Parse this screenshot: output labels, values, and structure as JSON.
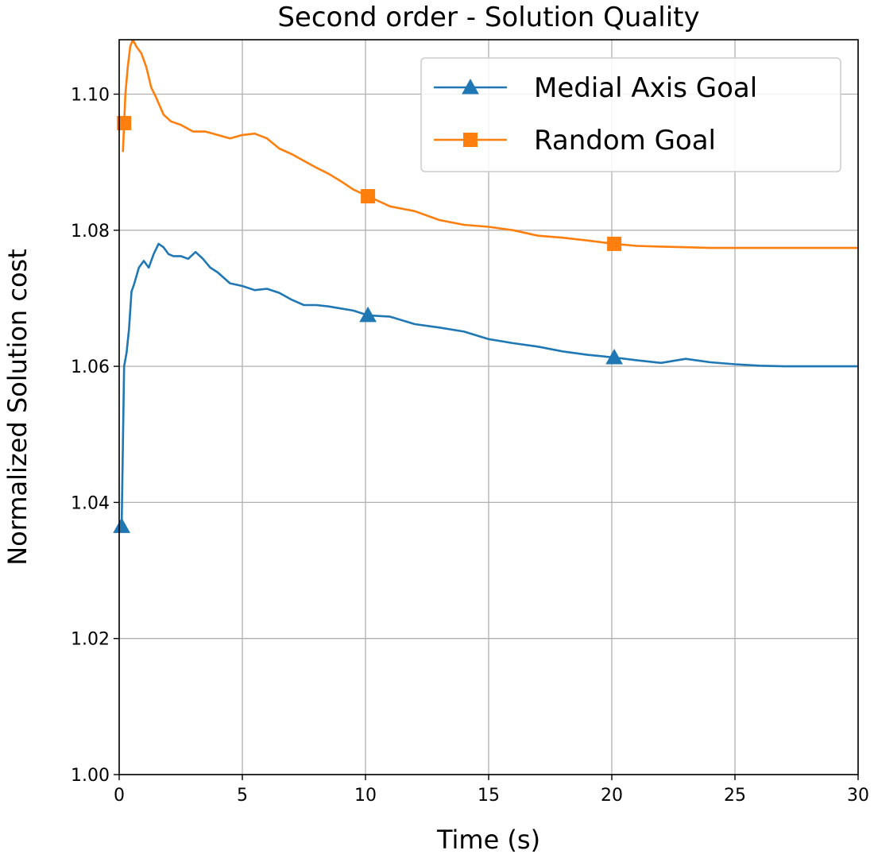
{
  "chart_data": {
    "type": "line",
    "title": "Second order - Solution Quality",
    "xlabel": "Time (s)",
    "ylabel": "Normalized Solution cost",
    "xlim": [
      0,
      30
    ],
    "ylim": [
      1.0,
      1.108
    ],
    "xticks": [
      0,
      5,
      10,
      15,
      20,
      25,
      30
    ],
    "xtick_labels": [
      "0",
      "5",
      "10",
      "15",
      "20",
      "25",
      "30"
    ],
    "yticks": [
      1.0,
      1.02,
      1.04,
      1.06,
      1.08,
      1.1
    ],
    "ytick_labels": [
      "1.00",
      "1.02",
      "1.04",
      "1.06",
      "1.08",
      "1.10"
    ],
    "grid": true,
    "legend_position": "top-right",
    "series": [
      {
        "name": "Medial Axis Goal",
        "color": "#1f77b4",
        "marker": "triangle",
        "marker_x": [
          0.1,
          10.1,
          20.1
        ],
        "x": [
          0.1,
          0.2,
          0.3,
          0.4,
          0.5,
          0.6,
          0.8,
          1.0,
          1.2,
          1.4,
          1.6,
          1.8,
          2.0,
          2.2,
          2.5,
          2.8,
          3.1,
          3.4,
          3.7,
          4.0,
          4.5,
          5.0,
          5.5,
          6.0,
          6.5,
          7.0,
          7.5,
          8.0,
          8.5,
          9.0,
          9.5,
          10.1,
          11,
          12,
          13,
          14,
          15,
          16,
          17,
          18,
          19,
          20.1,
          21,
          22,
          23,
          24,
          25,
          26,
          27,
          28,
          29,
          30
        ],
        "y": [
          1.0365,
          1.06,
          1.062,
          1.0655,
          1.071,
          1.072,
          1.0745,
          1.0755,
          1.0745,
          1.0765,
          1.078,
          1.0775,
          1.0765,
          1.0762,
          1.0762,
          1.0758,
          1.0768,
          1.0758,
          1.0745,
          1.0738,
          1.0722,
          1.0718,
          1.0712,
          1.0714,
          1.0708,
          1.0698,
          1.069,
          1.069,
          1.0688,
          1.0685,
          1.0682,
          1.0675,
          1.0673,
          1.0662,
          1.0657,
          1.0651,
          1.064,
          1.0634,
          1.0629,
          1.0622,
          1.0617,
          1.0613,
          1.0609,
          1.0605,
          1.0611,
          1.0606,
          1.0603,
          1.0601,
          1.06,
          1.06,
          1.06,
          1.06
        ]
      },
      {
        "name": "Random Goal",
        "color": "#ff7f0e",
        "marker": "square",
        "marker_x": [
          0.2,
          10.1,
          20.1
        ],
        "x": [
          0.15,
          0.25,
          0.35,
          0.45,
          0.55,
          0.7,
          0.9,
          1.1,
          1.3,
          1.5,
          1.8,
          2.1,
          2.5,
          3.0,
          3.5,
          4.0,
          4.5,
          5.0,
          5.5,
          6.0,
          6.5,
          7.0,
          7.5,
          8.0,
          8.5,
          9.0,
          9.5,
          10.1,
          11,
          12,
          13,
          14,
          15,
          16,
          17,
          18,
          19,
          20.1,
          21,
          22,
          23,
          24,
          25,
          26,
          27,
          28,
          29,
          30
        ],
        "y": [
          1.0915,
          1.1,
          1.104,
          1.107,
          1.108,
          1.107,
          1.106,
          1.104,
          1.101,
          1.0995,
          1.097,
          1.096,
          1.0955,
          1.0945,
          1.0945,
          1.094,
          1.0935,
          1.094,
          1.0942,
          1.0935,
          1.092,
          1.0912,
          1.0902,
          1.0892,
          1.0883,
          1.0872,
          1.086,
          1.085,
          1.0835,
          1.0828,
          1.0815,
          1.0808,
          1.0805,
          1.08,
          1.0792,
          1.0789,
          1.0785,
          1.078,
          1.0777,
          1.0776,
          1.0775,
          1.0774,
          1.0774,
          1.0774,
          1.0774,
          1.0774,
          1.0774,
          1.0774
        ]
      }
    ]
  }
}
